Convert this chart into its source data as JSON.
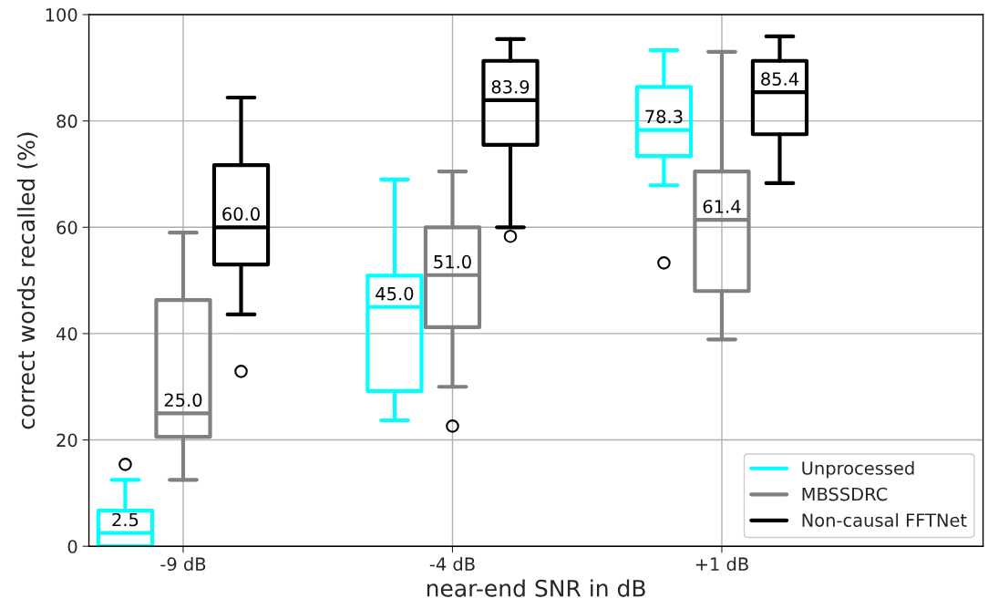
{
  "chart_data": {
    "type": "box",
    "xlabel": "near-end SNR in dB",
    "ylabel": "correct words recalled (%)",
    "categories": [
      "-9 dB",
      "-4 dB",
      "+1 dB"
    ],
    "ylim": [
      0,
      100
    ],
    "yticks": [
      0,
      20,
      40,
      60,
      80,
      100
    ],
    "grid": true,
    "legend": "bottom right",
    "series": [
      {
        "name": "Unprocessed",
        "color": "#00ffff",
        "value_labels": [
          "2.5",
          "45.0",
          "78.3"
        ],
        "boxes": [
          {
            "low": 0,
            "q1": 0,
            "median": 2.5,
            "q3": 6.7,
            "high": 12.5,
            "outliers": [
              15.4
            ]
          },
          {
            "low": 23.7,
            "q1": 29.2,
            "median": 45.0,
            "q3": 50.9,
            "high": 69.0
          },
          {
            "low": 67.9,
            "q1": 73.4,
            "median": 78.3,
            "q3": 86.4,
            "high": 93.3,
            "outliers": [
              53.3
            ]
          }
        ]
      },
      {
        "name": "MBSSDRC",
        "color": "#808080",
        "value_labels": [
          "25.0",
          "51.0",
          "61.4"
        ],
        "boxes": [
          {
            "low": 12.5,
            "q1": 20.6,
            "median": 25.0,
            "q3": 46.3,
            "high": 59.0
          },
          {
            "low": 30.0,
            "q1": 41.2,
            "median": 51.0,
            "q3": 60.0,
            "high": 70.5,
            "outliers": [
              22.6
            ]
          },
          {
            "low": 38.9,
            "q1": 48.0,
            "median": 61.4,
            "q3": 70.5,
            "high": 93.0
          }
        ]
      },
      {
        "name": "Non-causal FFTNet",
        "color": "#000000",
        "value_labels": [
          "60.0",
          "83.9",
          "85.4"
        ],
        "boxes": [
          {
            "low": 43.6,
            "q1": 53.0,
            "median": 60.0,
            "q3": 71.7,
            "high": 84.4,
            "outliers": [
              32.9
            ]
          },
          {
            "low": 60.0,
            "q1": 75.5,
            "median": 83.9,
            "q3": 91.3,
            "high": 95.4,
            "outliers": [
              58.3
            ]
          },
          {
            "low": 68.3,
            "q1": 77.5,
            "median": 85.4,
            "q3": 91.3,
            "high": 95.9
          }
        ]
      }
    ]
  }
}
